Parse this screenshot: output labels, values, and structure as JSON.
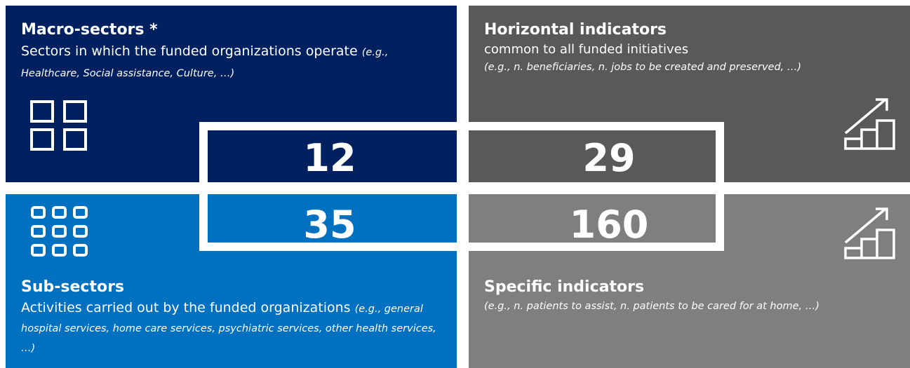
{
  "quadrants": [
    {
      "title": "Macro-sectors *",
      "description": "Sectors in which the funded organizations operate",
      "examples": "(e.g., Healthcare, Social assistance, Culture, …)",
      "number": 12
    },
    {
      "title": "Horizontal indicators",
      "description": "common to all funded initiatives",
      "examples": "(e.g., n. beneficiaries, n. jobs to be created and preserved, …)",
      "number": 29
    },
    {
      "title": "Sub-sectors",
      "description": "Activities carried out by the funded organizations",
      "examples": "(e.g., general hospital services, home care services, psychiatric services, other health services, …)",
      "number": 35
    },
    {
      "title": "Specific indicators",
      "examples": "(e.g., n. patients to assist, n. patients to be cared for at home, …)",
      "number": 160
    }
  ]
}
